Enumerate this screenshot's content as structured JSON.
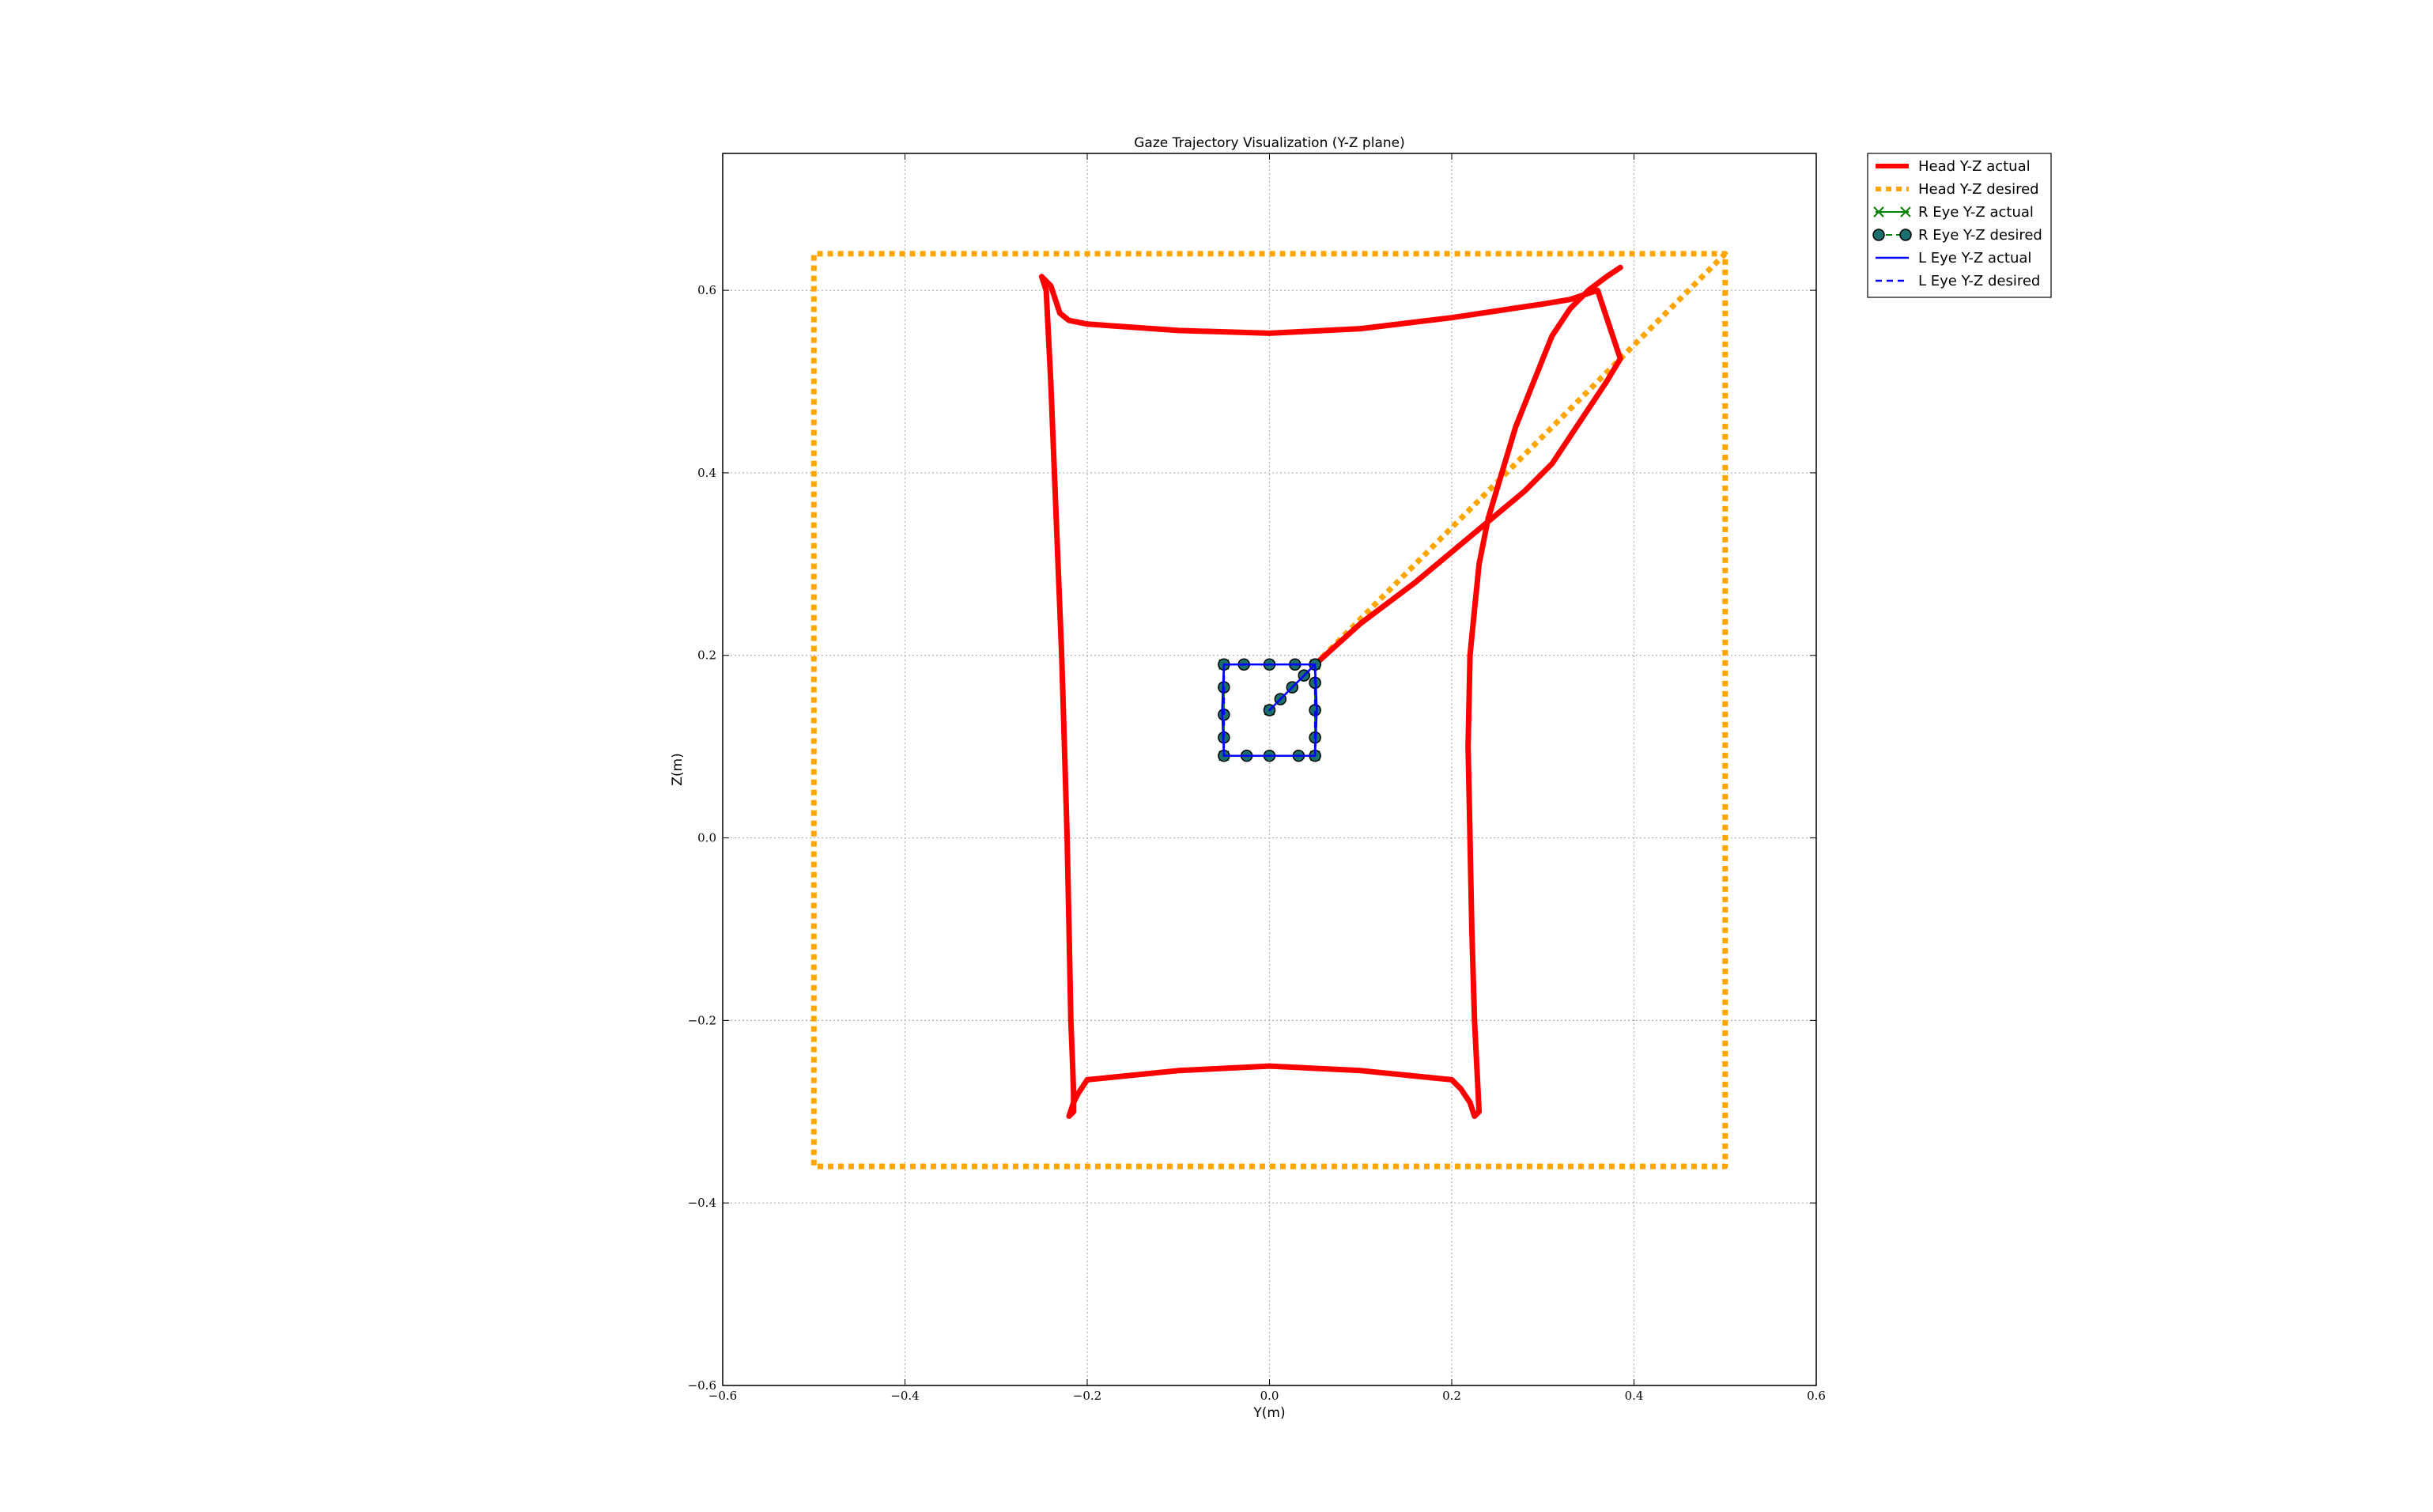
{
  "chart_data": {
    "type": "line",
    "title": "Gaze Trajectory Visualization (Y-Z plane)",
    "xlabel": "Y(m)",
    "ylabel": "Z(m)",
    "xlim": [
      -0.6,
      0.6
    ],
    "ylim": [
      -0.6,
      0.75
    ],
    "xticks": [
      -0.6,
      -0.4,
      -0.2,
      0.0,
      0.2,
      0.4,
      0.6
    ],
    "yticks": [
      -0.6,
      -0.4,
      -0.2,
      0.0,
      0.2,
      0.4,
      0.6
    ],
    "xtick_labels": [
      "−0.6",
      "−0.4",
      "−0.2",
      "0.0",
      "0.2",
      "0.4",
      "0.6"
    ],
    "ytick_labels": [
      "−0.6",
      "−0.4",
      "−0.2",
      "0.0",
      "0.2",
      "0.4",
      "0.6"
    ],
    "grid": true,
    "legend_position": "outside-top-right",
    "series": [
      {
        "name": "Head Y-Z actual",
        "color": "#ff0000",
        "style": "solid-thick",
        "x": [
          0.05,
          0.1,
          0.16,
          0.22,
          0.28,
          0.31,
          0.33,
          0.35,
          0.37,
          0.385,
          0.36,
          0.33,
          0.3,
          0.2,
          0.1,
          0.0,
          -0.1,
          -0.2,
          -0.22,
          -0.23,
          -0.235,
          -0.24,
          -0.25,
          -0.245,
          -0.24,
          -0.236,
          -0.232,
          -0.228,
          -0.225,
          -0.222,
          -0.22,
          -0.218,
          -0.216,
          -0.215,
          -0.215,
          -0.22,
          -0.215,
          -0.21,
          -0.2,
          -0.1,
          0.0,
          0.1,
          0.2,
          0.21,
          0.22,
          0.225,
          0.23,
          0.225,
          0.222,
          0.22,
          0.218,
          0.22,
          0.225,
          0.23,
          0.24,
          0.255,
          0.27,
          0.29,
          0.31,
          0.33,
          0.35,
          0.37,
          0.385
        ],
        "y": [
          0.19,
          0.235,
          0.28,
          0.33,
          0.38,
          0.41,
          0.44,
          0.47,
          0.5,
          0.525,
          0.6,
          0.59,
          0.585,
          0.57,
          0.558,
          0.553,
          0.556,
          0.563,
          0.567,
          0.575,
          0.59,
          0.605,
          0.615,
          0.6,
          0.5,
          0.4,
          0.3,
          0.2,
          0.1,
          0.0,
          -0.1,
          -0.2,
          -0.25,
          -0.28,
          -0.3,
          -0.305,
          -0.29,
          -0.28,
          -0.265,
          -0.255,
          -0.25,
          -0.255,
          -0.265,
          -0.275,
          -0.29,
          -0.305,
          -0.3,
          -0.2,
          -0.1,
          0.0,
          0.1,
          0.2,
          0.25,
          0.3,
          0.35,
          0.4,
          0.45,
          0.5,
          0.55,
          0.58,
          0.6,
          0.615,
          0.625
        ]
      },
      {
        "name": "Head Y-Z desired",
        "color": "#ffa500",
        "style": "dotted-thick",
        "x": [
          0.05,
          0.5,
          0.5,
          -0.5,
          -0.5,
          0.5
        ],
        "y": [
          0.19,
          0.64,
          -0.36,
          -0.36,
          0.64,
          0.64
        ]
      },
      {
        "name": "R Eye Y-Z actual",
        "color": "#008000",
        "style": "solid-x",
        "x": [
          0.0,
          0.05,
          0.05,
          -0.05,
          -0.05,
          0.05
        ],
        "y": [
          0.14,
          0.19,
          0.09,
          0.09,
          0.19,
          0.19
        ]
      },
      {
        "name": "R Eye Y-Z desired",
        "color": "#008000",
        "style": "dashed-o",
        "x": [
          0.0,
          0.012,
          0.025,
          0.038,
          0.05,
          0.05,
          0.05,
          0.05,
          0.05,
          0.032,
          0.0,
          -0.025,
          -0.05,
          -0.05,
          -0.05,
          -0.05,
          -0.05,
          -0.028,
          0.0,
          0.028,
          0.05
        ],
        "y": [
          0.14,
          0.152,
          0.165,
          0.178,
          0.19,
          0.17,
          0.14,
          0.11,
          0.09,
          0.09,
          0.09,
          0.09,
          0.09,
          0.11,
          0.135,
          0.165,
          0.19,
          0.19,
          0.19,
          0.19,
          0.19
        ]
      },
      {
        "name": "L Eye Y-Z actual",
        "color": "#0000ff",
        "style": "solid",
        "x": [
          0.0,
          0.05,
          0.052,
          0.05,
          -0.05,
          -0.052,
          -0.05,
          0.05
        ],
        "y": [
          0.14,
          0.19,
          0.14,
          0.09,
          0.09,
          0.14,
          0.19,
          0.19
        ]
      },
      {
        "name": "L Eye Y-Z desired",
        "color": "#0000ff",
        "style": "dashed",
        "x": [
          0.0,
          0.05,
          0.05,
          -0.05,
          -0.05,
          0.05
        ],
        "y": [
          0.14,
          0.19,
          0.09,
          0.09,
          0.19,
          0.19
        ]
      }
    ]
  }
}
